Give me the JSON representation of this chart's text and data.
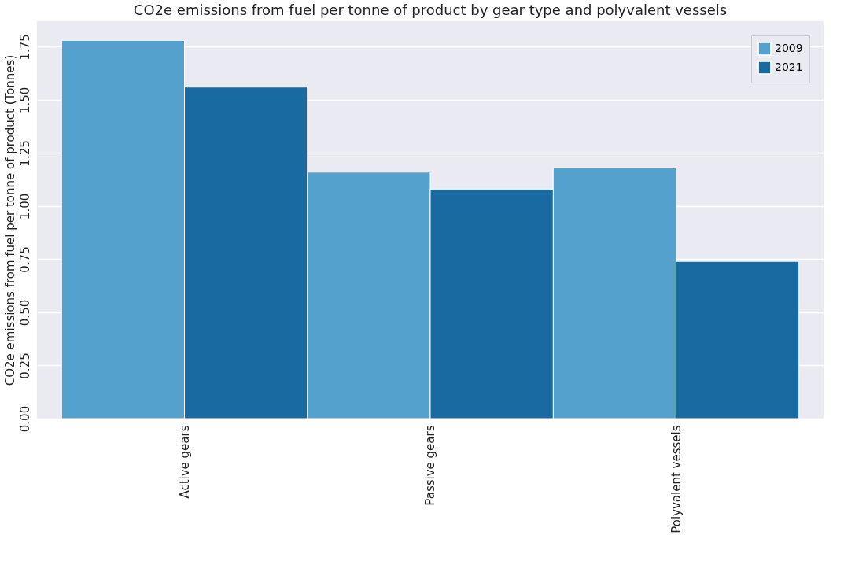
{
  "chart_data": {
    "type": "bar",
    "title": "CO2e emissions from fuel per tonne of product by gear type and polyvalent vessels",
    "ylabel": "CO2e emissions from fuel per tonne of product (Tonnes)",
    "categories": [
      "Active gears",
      "Passive gears",
      "Polyvalent vessels"
    ],
    "series": [
      {
        "name": "2009",
        "color": "#53a1cc",
        "values": [
          1.78,
          1.16,
          1.18
        ]
      },
      {
        "name": "2021",
        "color": "#1a6aa2",
        "values": [
          1.56,
          1.08,
          0.74
        ]
      }
    ],
    "ylim": [
      0,
      1.87
    ],
    "yticks": [
      {
        "value": 0,
        "label": "0.00"
      },
      {
        "value": 0.25,
        "label": "0.25"
      },
      {
        "value": 0.5,
        "label": "0.50"
      },
      {
        "value": 0.75,
        "label": "0.75"
      },
      {
        "value": 1,
        "label": "1.00"
      },
      {
        "value": 1.25,
        "label": "1.25"
      },
      {
        "value": 1.5,
        "label": "1.50"
      },
      {
        "value": 1.75,
        "label": "1.75"
      }
    ],
    "grid": "y",
    "legend": "top right"
  }
}
